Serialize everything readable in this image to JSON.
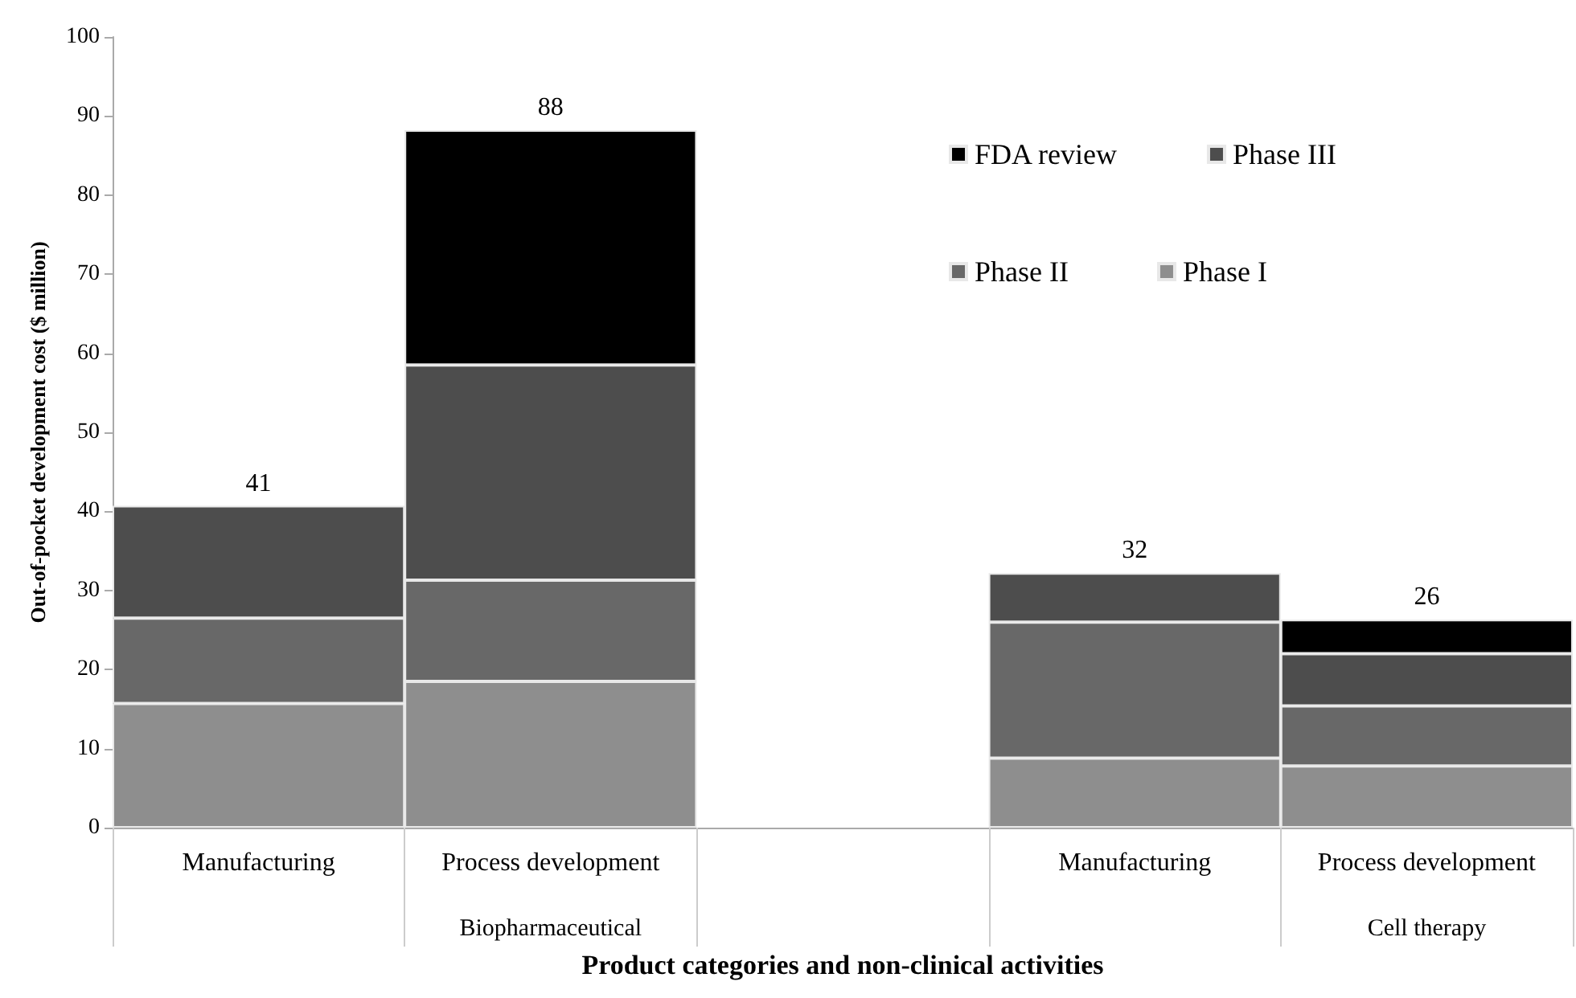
{
  "chart_data": {
    "type": "bar",
    "stacked": true,
    "xlabel": "Product categories and non-clinical activities",
    "ylabel": "Out-of-pocket development cost ($ million)",
    "categories": [
      "Manufacturing",
      "Process development",
      null,
      "Manufacturing",
      "Process development"
    ],
    "series": [
      {
        "name": "Phase I",
        "color": "#8e8e8e",
        "values": [
          15.7,
          18.5,
          null,
          8.8,
          7.8
        ]
      },
      {
        "name": "Phase II",
        "color": "#686868",
        "values": [
          10.8,
          12.8,
          null,
          17.2,
          7.6
        ]
      },
      {
        "name": "Phase III",
        "color": "#4d4d4d",
        "values": [
          14.2,
          27.2,
          null,
          6.2,
          6.6
        ]
      },
      {
        "name": "FDA review",
        "color": "#000000",
        "values": [
          null,
          29.7,
          null,
          null,
          4.3
        ]
      }
    ],
    "totals": [
      "41",
      "88",
      null,
      "32",
      "26"
    ],
    "annotations": [
      "Biopharmaceutical",
      "Cell therapy"
    ],
    "ylim": [
      0,
      100
    ],
    "yticks": [
      0,
      10,
      20,
      30,
      40,
      50,
      60,
      70,
      80,
      90,
      100
    ],
    "grid": false,
    "legend": "top right"
  }
}
